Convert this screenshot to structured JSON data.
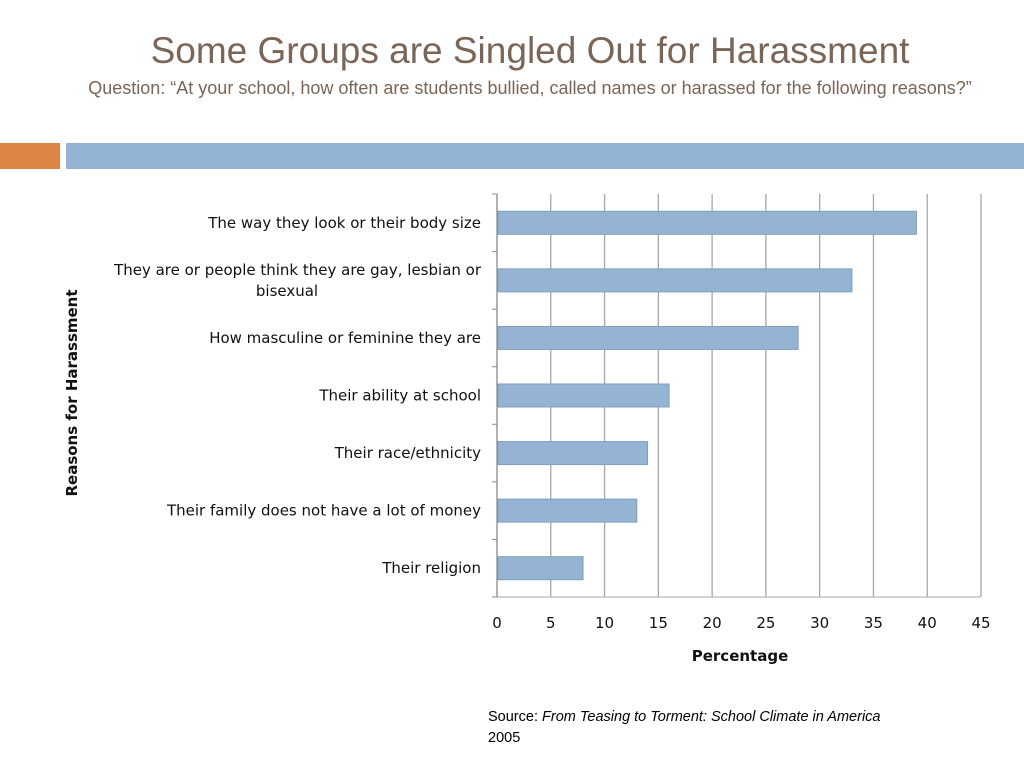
{
  "slide": {
    "title": "Some Groups are Singled Out for Harassment",
    "subtitle": "Question: “At your school, how often are students bullied, called names or harassed for the following reasons?”"
  },
  "chart_data": {
    "type": "bar",
    "orientation": "horizontal",
    "categories": [
      "The way they look or their body size",
      "They are or people think they are gay, lesbian or bisexual",
      "How masculine or feminine they are",
      "Their ability at school",
      "Their race/ethnicity",
      "Their family does not have a lot of money",
      "Their religion"
    ],
    "category_lines": [
      [
        "The way they look or their body size"
      ],
      [
        "They are or people think they are gay, lesbian or",
        "bisexual"
      ],
      [
        "How masculine or feminine they are"
      ],
      [
        "Their ability at school"
      ],
      [
        "Their race/ethnicity"
      ],
      [
        "Their family does not have a lot of money"
      ],
      [
        "Their religion"
      ]
    ],
    "values": [
      39,
      33,
      28,
      16,
      14,
      13,
      8
    ],
    "xlabel": "Percentage",
    "ylabel": "Reasons for Harassment",
    "xlim": [
      0,
      45
    ],
    "xticks": [
      "0",
      "5",
      "10",
      "15",
      "20",
      "25",
      "30",
      "35",
      "40",
      "45"
    ],
    "grid": "vertical",
    "legend": "none",
    "bar_color": "#95b4d3",
    "bar_stroke": "#7f9fbf",
    "grid_color": "#a8a8a8"
  },
  "source": {
    "label": "Source:",
    "title": "From Teasing to Torment: School Climate in America",
    "year": "2005"
  }
}
